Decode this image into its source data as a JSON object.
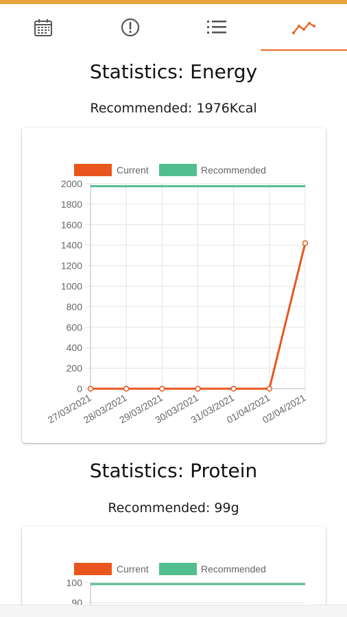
{
  "colors": {
    "accent": "#e8a33a",
    "current": "#e8561e",
    "recommended": "#52be8d",
    "active_tab": "#e8672a"
  },
  "tabs": [
    {
      "icon": "calendar-icon",
      "active": false
    },
    {
      "icon": "alert-circle-icon",
      "active": false
    },
    {
      "icon": "list-icon",
      "active": false
    },
    {
      "icon": "trend-chart-icon",
      "active": true
    }
  ],
  "sections": [
    {
      "title": "Statistics: Energy",
      "recommended": "Recommended: 1976Kcal"
    },
    {
      "title": "Statistics: Protein",
      "recommended": "Recommended: 99g"
    }
  ],
  "chart_data": [
    {
      "type": "line",
      "legend": [
        "Current",
        "Recommended"
      ],
      "categories": [
        "27/03/2021",
        "28/03/2021",
        "29/03/2021",
        "30/03/2021",
        "31/03/2021",
        "01/04/2021",
        "02/04/2021"
      ],
      "yticks": [
        "0",
        "200",
        "400",
        "600",
        "800",
        "1000",
        "1200",
        "1400",
        "1600",
        "1800",
        "2000"
      ],
      "ylim": [
        0,
        2000
      ],
      "series": [
        {
          "name": "Current",
          "values": [
            0,
            0,
            0,
            0,
            0,
            0,
            1420
          ]
        },
        {
          "name": "Recommended",
          "values": [
            1976,
            1976,
            1976,
            1976,
            1976,
            1976,
            1976
          ]
        }
      ]
    },
    {
      "type": "line",
      "legend": [
        "Current",
        "Recommended"
      ],
      "yticks": [
        "90",
        "100"
      ],
      "series": [
        {
          "name": "Current",
          "values": []
        },
        {
          "name": "Recommended",
          "values": [
            99,
            99,
            99,
            99,
            99,
            99,
            99
          ]
        }
      ]
    }
  ]
}
